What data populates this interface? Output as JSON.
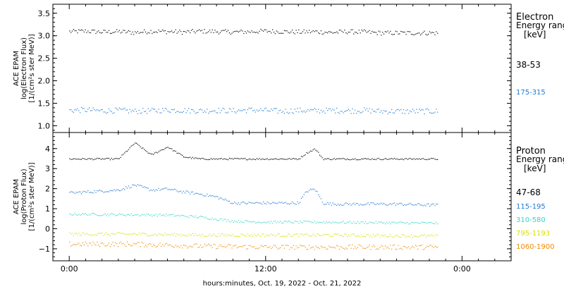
{
  "chart_data": [
    {
      "type": "scatter",
      "panel": "electron",
      "ylabel_lines": [
        "ACE EPAM",
        "log(Electron Flux)",
        "[1/(cm²s ster MeV)]"
      ],
      "legend_title_lines": [
        "Electron",
        "Energy range",
        "[keV]"
      ],
      "ylim": [
        0.85,
        3.7
      ],
      "yticks": [
        "1.0",
        "1.5",
        "2.0",
        "2.5",
        "3.0",
        "3.5"
      ],
      "ytick_values": [
        1.0,
        1.5,
        2.0,
        2.5,
        3.0,
        3.5
      ],
      "series": [
        {
          "name": "38-53",
          "color": "#000000",
          "base": 3.1,
          "amp": 0.05,
          "x": [
            0,
            1,
            2,
            3,
            4,
            5,
            6,
            7,
            8,
            9,
            10,
            11,
            12,
            13,
            14,
            15,
            16,
            17,
            18,
            19
          ],
          "values": [
            3.1,
            3.11,
            3.09,
            3.1,
            3.08,
            3.11,
            3.1,
            3.09,
            3.11,
            3.1,
            3.09,
            3.1,
            3.11,
            3.1,
            3.09,
            3.1,
            3.08,
            3.1,
            3.09,
            3.07
          ]
        },
        {
          "name": "175-315",
          "color": "#1f7ad6",
          "base": 1.35,
          "amp": 0.06,
          "x": [
            0,
            1,
            2,
            3,
            4,
            5,
            6,
            7,
            8,
            9,
            10,
            11,
            12,
            13,
            14,
            15,
            16,
            17,
            18,
            19
          ],
          "values": [
            1.35,
            1.36,
            1.34,
            1.35,
            1.33,
            1.34,
            1.36,
            1.35,
            1.34,
            1.35,
            1.34,
            1.36,
            1.35,
            1.33,
            1.35,
            1.34,
            1.35,
            1.34,
            1.35,
            1.33
          ]
        }
      ]
    },
    {
      "type": "scatter",
      "panel": "proton",
      "ylabel_lines": [
        "ACE EPAM",
        "log(Proton Flux)",
        "[1/(cm²s ster MeV)]"
      ],
      "legend_title_lines": [
        "Proton",
        "Energy range",
        "[keV]"
      ],
      "ylim": [
        -1.6,
        4.8
      ],
      "yticks": [
        "−1",
        "0",
        "1",
        "2",
        "3",
        "4"
      ],
      "ytick_values": [
        -1,
        0,
        1,
        2,
        3,
        4
      ],
      "series": [
        {
          "name": "47-68",
          "color": "#000000",
          "amp": 0.04,
          "x": [
            0,
            2,
            3,
            4,
            5,
            6,
            7,
            8,
            10,
            12,
            14,
            14.5,
            15,
            15.5,
            16,
            18,
            20,
            22
          ],
          "values": [
            3.5,
            3.5,
            3.5,
            4.3,
            3.7,
            4.1,
            3.6,
            3.5,
            3.5,
            3.5,
            3.5,
            3.8,
            4.0,
            3.5,
            3.5,
            3.5,
            3.5,
            3.5
          ]
        },
        {
          "name": "115-195",
          "color": "#1f7ad6",
          "amp": 0.07,
          "x": [
            0,
            2,
            3,
            4,
            5,
            6,
            7,
            8,
            9,
            10,
            12,
            14,
            14.5,
            15,
            15.5,
            16,
            18,
            20,
            22
          ],
          "values": [
            1.8,
            1.9,
            1.95,
            2.2,
            1.95,
            2.0,
            1.85,
            1.75,
            1.6,
            1.3,
            1.3,
            1.3,
            1.9,
            2.0,
            1.3,
            1.25,
            1.25,
            1.25,
            1.2
          ]
        },
        {
          "name": "310-580",
          "color": "#33d6c8",
          "amp": 0.06,
          "x": [
            0,
            3,
            6,
            8,
            9,
            10,
            12,
            15,
            18,
            22
          ],
          "values": [
            0.75,
            0.72,
            0.7,
            0.6,
            0.5,
            0.4,
            0.35,
            0.35,
            0.33,
            0.3
          ]
        },
        {
          "name": "795-1193",
          "color": "#d8e000",
          "amp": 0.08,
          "x": [
            0,
            4,
            8,
            12,
            16,
            22
          ],
          "values": [
            -0.25,
            -0.25,
            -0.3,
            -0.3,
            -0.3,
            -0.35
          ]
        },
        {
          "name": "1060-1900",
          "color": "#f08a00",
          "amp": 0.12,
          "x": [
            0,
            4,
            8,
            12,
            16,
            22
          ],
          "values": [
            -0.75,
            -0.75,
            -0.85,
            -0.9,
            -0.9,
            -0.9
          ]
        }
      ]
    }
  ],
  "x_axis": {
    "xlim": [
      -1,
      27
    ],
    "ticks": [
      {
        "value": 0,
        "label": "0:00"
      },
      {
        "value": 12,
        "label": "12:00"
      },
      {
        "value": 24,
        "label": "0:00"
      }
    ],
    "data_end": 22.5,
    "label": "hours:minutes, Oct. 19, 2022 - Oct. 21, 2022"
  }
}
